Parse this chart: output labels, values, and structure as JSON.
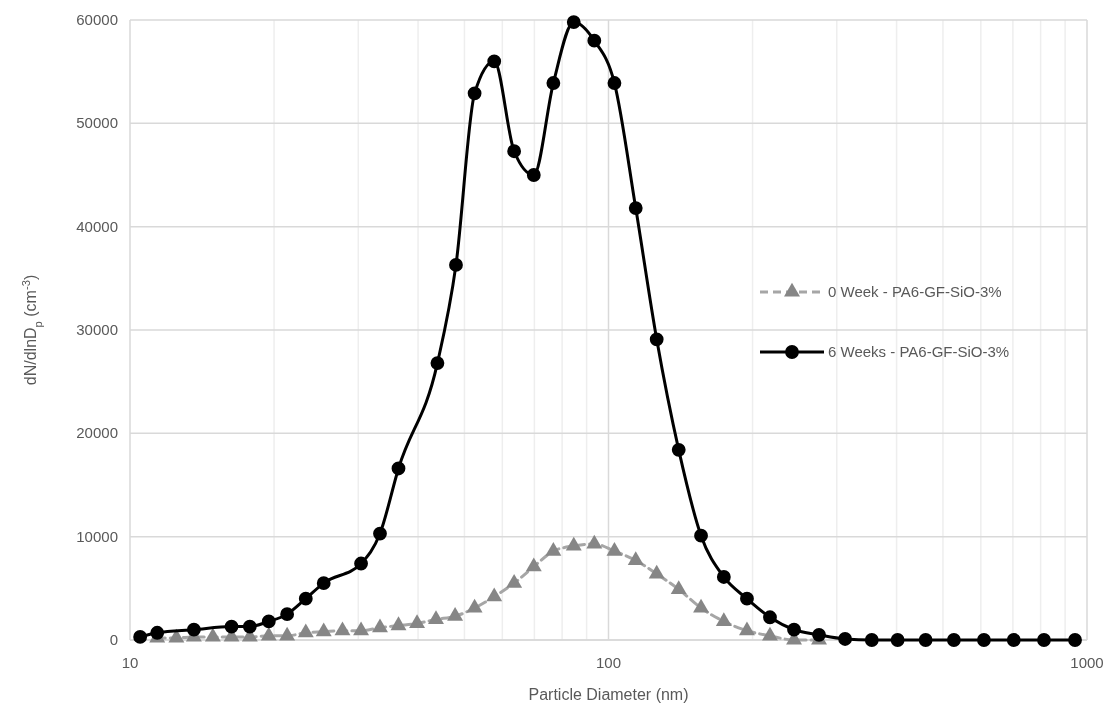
{
  "chart_data": {
    "type": "line",
    "xlabel": "Particle Diameter (nm)",
    "ylabel": "dN/dlnD$_{p}$ (cm$^{-3}$)",
    "log": "x",
    "grid": true,
    "legend": "right",
    "xlim": [
      10,
      1000
    ],
    "xticks": [
      10,
      {
        "value": 20,
        "label": null
      },
      {
        "value": 30,
        "label": null
      },
      {
        "value": 40,
        "label": null
      },
      {
        "value": 50,
        "label": null
      },
      {
        "value": 60,
        "label": null
      },
      {
        "value": 70,
        "label": null
      },
      {
        "value": 80,
        "label": null
      },
      {
        "value": 90,
        "label": null
      },
      100,
      {
        "value": 200,
        "label": null
      },
      {
        "value": 300,
        "label": null
      },
      {
        "value": 400,
        "label": null
      },
      {
        "value": 500,
        "label": null
      },
      {
        "value": 600,
        "label": null
      },
      {
        "value": 700,
        "label": null
      },
      {
        "value": 800,
        "label": null
      },
      {
        "value": 900,
        "label": null
      },
      1000
    ],
    "ylim": [
      0,
      60000
    ],
    "yticks": [
      0,
      10000,
      20000,
      30000,
      40000,
      50000,
      60000
    ],
    "series": [
      {
        "name": "0 Week - PA6-GF-SiO-3%",
        "color": "#a6a6a6",
        "marker": "triangle",
        "line_style": "dashed",
        "x": [
          11.4,
          12.5,
          13.6,
          14.9,
          16.3,
          17.8,
          19.5,
          21.3,
          23.3,
          25.4,
          27.8,
          30.4,
          33.3,
          36.4,
          39.8,
          43.6,
          47.8,
          52.5,
          57.7,
          63.5,
          69.8,
          76.7,
          84.6,
          93.4,
          102.9,
          114,
          126.1,
          140.2,
          156.1,
          174.2,
          194.7,
          217.5,
          244.2,
          275.4
        ],
        "values": [
          200,
          200,
          300,
          300,
          300,
          300,
          400,
          400,
          700,
          800,
          900,
          900,
          1200,
          1400,
          1600,
          2000,
          2300,
          3100,
          4200,
          5500,
          7100,
          8600,
          9100,
          9300,
          8600,
          7700,
          6400,
          4900,
          3100,
          1800,
          900,
          400,
          0,
          0
        ]
      },
      {
        "name": "6 Weeks - PA6-GF-SiO-3%",
        "color": "#000000",
        "marker": "circle",
        "line_style": "solid",
        "x": [
          10.5,
          11.4,
          13.6,
          16.3,
          17.8,
          19.5,
          21.3,
          23.3,
          25.4,
          30.4,
          33.3,
          36.4,
          43.9,
          48.0,
          52.5,
          57.7,
          63.5,
          69.8,
          76.7,
          84.6,
          93.4,
          102.9,
          114,
          126.1,
          140.2,
          156.1,
          174.2,
          194.7,
          217.5,
          244.2,
          275.4,
          312.2,
          355,
          402,
          460,
          527,
          609,
          703,
          813,
          944
        ],
        "values": [
          300,
          700,
          1000,
          1300,
          1300,
          1800,
          2500,
          4000,
          5500,
          7400,
          10300,
          16600,
          26800,
          36300,
          52900,
          56000,
          47300,
          45000,
          53900,
          59800,
          58000,
          53900,
          41800,
          29100,
          18400,
          10100,
          6100,
          4000,
          2200,
          1000,
          500,
          100,
          0,
          0,
          0,
          0,
          0,
          0,
          0,
          0
        ]
      }
    ]
  }
}
